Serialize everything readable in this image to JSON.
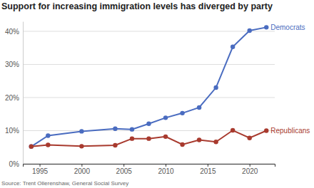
{
  "chart_data": {
    "type": "line",
    "title": "Support for increasing immigration levels has diverged by party",
    "source": "Source: Trent Ollerenshaw, General Social Survey",
    "x": [
      1994,
      1996,
      2000,
      2004,
      2006,
      2008,
      2010,
      2012,
      2014,
      2016,
      2018,
      2020,
      2022
    ],
    "series": [
      {
        "name": "Democrats",
        "color": "#4a6cc0",
        "marker": "circle",
        "values": [
          5.2,
          8.5,
          9.8,
          10.6,
          10.4,
          12.1,
          13.9,
          15.3,
          17.0,
          23.0,
          35.3,
          40.2,
          41.2
        ]
      },
      {
        "name": "Republicans",
        "color": "#a83a2e",
        "marker": "circle",
        "values": [
          5.2,
          5.7,
          5.3,
          5.6,
          7.6,
          7.6,
          8.2,
          5.8,
          7.2,
          6.6,
          10.1,
          7.8,
          10.0
        ]
      }
    ],
    "xlim": [
      1993,
      2023
    ],
    "xticks": [
      1995,
      2000,
      2005,
      2010,
      2015,
      2020
    ],
    "ylim": [
      0,
      43
    ],
    "yticks": [
      {
        "value": 0,
        "label": "0%"
      },
      {
        "value": 10,
        "label": "10%"
      },
      {
        "value": 20,
        "label": "20%"
      },
      {
        "value": 30,
        "label": "30%"
      },
      {
        "value": 40,
        "label": "40%"
      }
    ],
    "grid": true
  }
}
